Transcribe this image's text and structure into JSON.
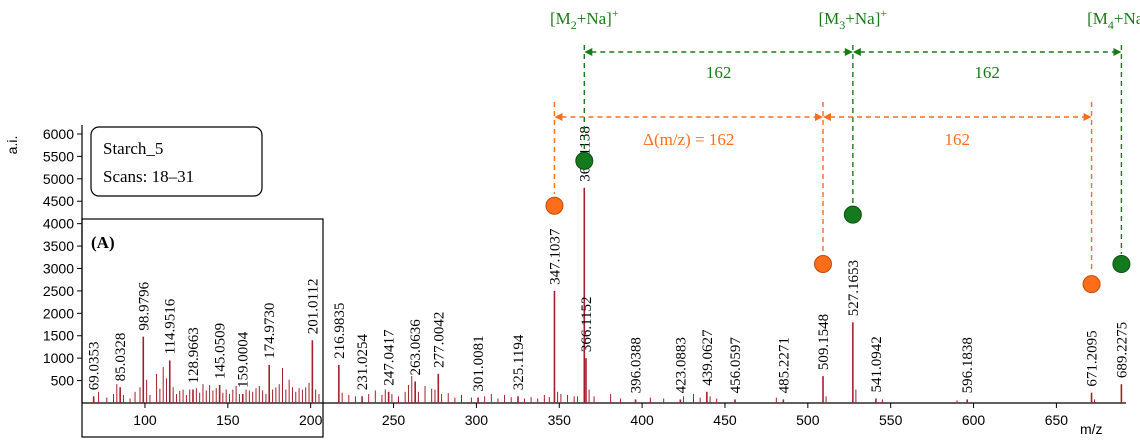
{
  "chart_data": {
    "type": "bar",
    "title": "",
    "xlabel": "m/z",
    "ylabel": "a.i.",
    "xlim": [
      62,
      692
    ],
    "ylim": [
      0,
      6200
    ],
    "grid": false,
    "x_ticks": [
      "100",
      "150",
      "200",
      "250",
      "300",
      "350",
      "400",
      "450",
      "500",
      "550",
      "600",
      "650"
    ],
    "y_ticks": [
      "500",
      "1000",
      "1500",
      "2000",
      "2500",
      "3000",
      "3500",
      "4000",
      "4500",
      "5000",
      "5500",
      "6000"
    ],
    "colors": {
      "stem": "#a31f2c",
      "green": "#1a7a1a",
      "orange": "#ff6d1a",
      "green_marker": "#147a1e"
    },
    "info_box": {
      "name": "Starch_5",
      "scans": "Scans: 18–31"
    },
    "panel_label": "(A)",
    "peaks": [
      {
        "mz": 69.0353,
        "label": "69.0353",
        "y": 150
      },
      {
        "mz": 85.0328,
        "label": "85.0328",
        "y": 350
      },
      {
        "mz": 98.9796,
        "label": "98.9796",
        "y": 1480
      },
      {
        "mz": 114.9516,
        "label": "114.9516",
        "y": 950
      },
      {
        "mz": 128.9663,
        "label": "128.9663",
        "y": 300
      },
      {
        "mz": 145.0509,
        "label": "145.0509",
        "y": 400
      },
      {
        "mz": 159.0004,
        "label": "159.0004",
        "y": 200
      },
      {
        "mz": 174.973,
        "label": "174.9730",
        "y": 850
      },
      {
        "mz": 201.0112,
        "label": "201.0112",
        "y": 1400
      },
      {
        "mz": 216.9835,
        "label": "216.9835",
        "y": 850
      },
      {
        "mz": 231.0254,
        "label": "231.0254",
        "y": 150
      },
      {
        "mz": 247.0417,
        "label": "247.0417",
        "y": 250
      },
      {
        "mz": 263.0636,
        "label": "263.0636",
        "y": 480
      },
      {
        "mz": 277.0042,
        "label": "277.0042",
        "y": 650
      },
      {
        "mz": 301.0081,
        "label": "301.0081",
        "y": 120
      },
      {
        "mz": 325.1194,
        "label": "325.1194",
        "y": 150
      },
      {
        "mz": 347.1037,
        "label": "347.1037",
        "y": 2500
      },
      {
        "mz": 365.1138,
        "label": "365.1138",
        "y": 4800
      },
      {
        "mz": 366.1152,
        "label": "366.1152",
        "y": 1000
      },
      {
        "mz": 396.0388,
        "label": "396.0388",
        "y": 80
      },
      {
        "mz": 423.0883,
        "label": "423.0883",
        "y": 80
      },
      {
        "mz": 439.0627,
        "label": "439.0627",
        "y": 250
      },
      {
        "mz": 456.0597,
        "label": "456.0597",
        "y": 80
      },
      {
        "mz": 485.2271,
        "label": "485.2271",
        "y": 80
      },
      {
        "mz": 509.1548,
        "label": "509.1548",
        "y": 600
      },
      {
        "mz": 527.1653,
        "label": "527.1653",
        "y": 1800
      },
      {
        "mz": 541.0942,
        "label": "541.0942",
        "y": 100
      },
      {
        "mz": 596.1838,
        "label": "596.1838",
        "y": 80
      },
      {
        "mz": 671.2095,
        "label": "671.2095",
        "y": 230
      },
      {
        "mz": 689.2275,
        "label": "689.2275",
        "y": 420
      }
    ],
    "minor_peaks": [
      {
        "mz": 72,
        "y": 250
      },
      {
        "mz": 77,
        "y": 120
      },
      {
        "mz": 81,
        "y": 200
      },
      {
        "mz": 83,
        "y": 420
      },
      {
        "mz": 87,
        "y": 180
      },
      {
        "mz": 91,
        "y": 100
      },
      {
        "mz": 94,
        "y": 250
      },
      {
        "mz": 97,
        "y": 350
      },
      {
        "mz": 101,
        "y": 520
      },
      {
        "mz": 103,
        "y": 180
      },
      {
        "mz": 107,
        "y": 650
      },
      {
        "mz": 109,
        "y": 320
      },
      {
        "mz": 111,
        "y": 800
      },
      {
        "mz": 113,
        "y": 550
      },
      {
        "mz": 117,
        "y": 350
      },
      {
        "mz": 119,
        "y": 200
      },
      {
        "mz": 121,
        "y": 270
      },
      {
        "mz": 123,
        "y": 300
      },
      {
        "mz": 125,
        "y": 180
      },
      {
        "mz": 127,
        "y": 300
      },
      {
        "mz": 131,
        "y": 330
      },
      {
        "mz": 133,
        "y": 230
      },
      {
        "mz": 135,
        "y": 420
      },
      {
        "mz": 137,
        "y": 280
      },
      {
        "mz": 139,
        "y": 400
      },
      {
        "mz": 141,
        "y": 280
      },
      {
        "mz": 143,
        "y": 330
      },
      {
        "mz": 147,
        "y": 230
      },
      {
        "mz": 149,
        "y": 300
      },
      {
        "mz": 151,
        "y": 200
      },
      {
        "mz": 153,
        "y": 300
      },
      {
        "mz": 155,
        "y": 380
      },
      {
        "mz": 157,
        "y": 200
      },
      {
        "mz": 161,
        "y": 300
      },
      {
        "mz": 163,
        "y": 280
      },
      {
        "mz": 165,
        "y": 250
      },
      {
        "mz": 167,
        "y": 330
      },
      {
        "mz": 169,
        "y": 380
      },
      {
        "mz": 171,
        "y": 280
      },
      {
        "mz": 173,
        "y": 200
      },
      {
        "mz": 177,
        "y": 300
      },
      {
        "mz": 179,
        "y": 350
      },
      {
        "mz": 181,
        "y": 420
      },
      {
        "mz": 183,
        "y": 780
      },
      {
        "mz": 185,
        "y": 300
      },
      {
        "mz": 187,
        "y": 520
      },
      {
        "mz": 189,
        "y": 350
      },
      {
        "mz": 191,
        "y": 250
      },
      {
        "mz": 193,
        "y": 330
      },
      {
        "mz": 195,
        "y": 300
      },
      {
        "mz": 197,
        "y": 350
      },
      {
        "mz": 199,
        "y": 450
      },
      {
        "mz": 203,
        "y": 300
      },
      {
        "mz": 205,
        "y": 200
      },
      {
        "mz": 219,
        "y": 230
      },
      {
        "mz": 223,
        "y": 180
      },
      {
        "mz": 227,
        "y": 150
      },
      {
        "mz": 235,
        "y": 200
      },
      {
        "mz": 239,
        "y": 280
      },
      {
        "mz": 243,
        "y": 180
      },
      {
        "mz": 245,
        "y": 300
      },
      {
        "mz": 249,
        "y": 200
      },
      {
        "mz": 253,
        "y": 150
      },
      {
        "mz": 257,
        "y": 250
      },
      {
        "mz": 259,
        "y": 400
      },
      {
        "mz": 261,
        "y": 600
      },
      {
        "mz": 265,
        "y": 250
      },
      {
        "mz": 269,
        "y": 380
      },
      {
        "mz": 273,
        "y": 320
      },
      {
        "mz": 275,
        "y": 300
      },
      {
        "mz": 279,
        "y": 200
      },
      {
        "mz": 283,
        "y": 220
      },
      {
        "mz": 287,
        "y": 120
      },
      {
        "mz": 291,
        "y": 180
      },
      {
        "mz": 297,
        "y": 120
      },
      {
        "mz": 305,
        "y": 150
      },
      {
        "mz": 309,
        "y": 200
      },
      {
        "mz": 313,
        "y": 100
      },
      {
        "mz": 317,
        "y": 180
      },
      {
        "mz": 321,
        "y": 130
      },
      {
        "mz": 329,
        "y": 100
      },
      {
        "mz": 333,
        "y": 130
      },
      {
        "mz": 337,
        "y": 100
      },
      {
        "mz": 341,
        "y": 180
      },
      {
        "mz": 344,
        "y": 130
      },
      {
        "mz": 349,
        "y": 250
      },
      {
        "mz": 351,
        "y": 200
      },
      {
        "mz": 355,
        "y": 180
      },
      {
        "mz": 359,
        "y": 150
      },
      {
        "mz": 361,
        "y": 150
      },
      {
        "mz": 368,
        "y": 300
      },
      {
        "mz": 371,
        "y": 150
      },
      {
        "mz": 381,
        "y": 200
      },
      {
        "mz": 387,
        "y": 100
      },
      {
        "mz": 405,
        "y": 120
      },
      {
        "mz": 413,
        "y": 100
      },
      {
        "mz": 425,
        "y": 150
      },
      {
        "mz": 431,
        "y": 200
      },
      {
        "mz": 435,
        "y": 120
      },
      {
        "mz": 441,
        "y": 150
      },
      {
        "mz": 445,
        "y": 100
      },
      {
        "mz": 481,
        "y": 120
      },
      {
        "mz": 511,
        "y": 150
      },
      {
        "mz": 529,
        "y": 300
      },
      {
        "mz": 545,
        "y": 80
      },
      {
        "mz": 590,
        "y": 60
      },
      {
        "mz": 673,
        "y": 80
      }
    ],
    "series_markers": [
      {
        "name": "green",
        "points": [
          {
            "mz": 365.1138,
            "y": 5400
          },
          {
            "mz": 527.1653,
            "y": 4200
          },
          {
            "mz": 689.2275,
            "y": 3100
          }
        ]
      },
      {
        "name": "orange",
        "points": [
          {
            "mz": 347.1037,
            "y": 4400
          },
          {
            "mz": 509.1548,
            "y": 3100
          },
          {
            "mz": 671.2095,
            "y": 2650
          }
        ]
      }
    ],
    "annotations": {
      "green": [
        {
          "label": "[M",
          "sub": "2",
          "tail": "+Na]",
          "sup": "+",
          "mz": 365.1138
        },
        {
          "label": "[M",
          "sub": "3",
          "tail": "+Na]",
          "sup": "+",
          "mz": 527.1653
        },
        {
          "label": "[M",
          "sub": "4",
          "tail": "+Na]",
          "sup": "+",
          "mz": 689.2275
        }
      ],
      "green_gap_labels": [
        "162",
        "162"
      ],
      "orange_gap_labels": [
        "Δ(m/z) = 162",
        "162"
      ]
    }
  }
}
